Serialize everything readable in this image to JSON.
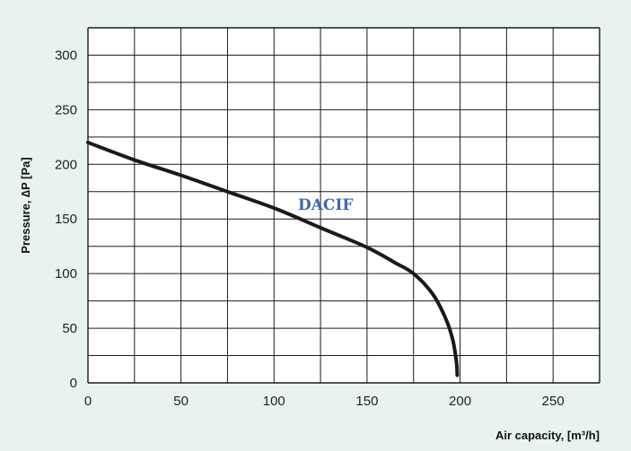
{
  "chart_data": {
    "type": "line",
    "title": "",
    "xlabel": "Air capacity, [m³/h]",
    "ylabel": "Pressure, ∆P [Pa]",
    "xlim": [
      0,
      275
    ],
    "ylim": [
      0,
      325
    ],
    "x_ticks": [
      "0",
      "50",
      "100",
      "150",
      "200",
      "250"
    ],
    "y_ticks": [
      "0",
      "50",
      "100",
      "150",
      "200",
      "250",
      "300"
    ],
    "grid": true,
    "series": [
      {
        "name": "DACIF",
        "x": [
          0,
          25,
          50,
          75,
          100,
          125,
          150,
          165,
          175,
          185,
          192,
          196,
          198,
          198.5
        ],
        "y": [
          220,
          204,
          190,
          175,
          160,
          142,
          124,
          110,
          100,
          82,
          60,
          40,
          20,
          7
        ]
      }
    ],
    "colors": {
      "background": "#e8f3ee",
      "plot": "#ffffff",
      "line": "#1a1a1a",
      "label": "#3a6ab0"
    }
  }
}
